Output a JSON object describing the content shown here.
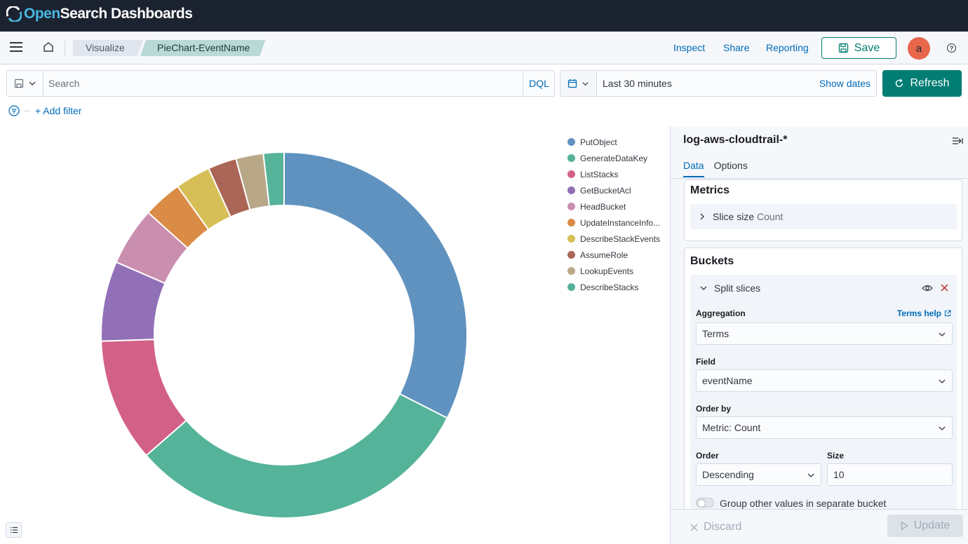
{
  "header": {
    "logo_open": "Open",
    "logo_rest": "Search Dashboards"
  },
  "nav": {
    "breadcrumbs": [
      "Visualize",
      "PieChart-EventName"
    ],
    "inspect": "Inspect",
    "share": "Share",
    "reporting": "Reporting",
    "save": "Save",
    "avatar_initial": "a",
    "help_glyph": "?"
  },
  "query": {
    "search_placeholder": "Search",
    "language": "DQL",
    "time_range": "Last 30 minutes",
    "show_dates": "Show dates",
    "refresh": "Refresh",
    "add_filter": "+ Add filter"
  },
  "chart_data": {
    "type": "pie",
    "donut": true,
    "categories": [
      "PutObject",
      "GenerateDataKey",
      "ListStacks",
      "GetBucketAcl",
      "HeadBucket",
      "UpdateInstanceInfo...",
      "DescribeStackEvents",
      "AssumeRole",
      "LookupEvents",
      "DescribeStacks"
    ],
    "values": [
      32.2,
      30.8,
      10.8,
      7.0,
      5.1,
      3.4,
      3.1,
      2.5,
      2.4,
      1.8
    ],
    "colors": [
      "#6092c0",
      "#54b399",
      "#d36086",
      "#9170b8",
      "#ca8eae",
      "#d6bf57",
      "#b9a888",
      "#da8b45",
      "#aa6556",
      "#e7664c"
    ],
    "slice_colors": [
      "#6092c0",
      "#54b399",
      "#d36086",
      "#9170b8",
      "#ca8eae",
      "#da8b45",
      "#d6bf57",
      "#aa6556",
      "#b9a888",
      "#54b399"
    ],
    "legend_position": "right"
  },
  "sidebar": {
    "index_pattern": "log-aws-cloudtrail-*",
    "tabs": [
      "Data",
      "Options"
    ],
    "metrics_title": "Metrics",
    "slice_size_label": "Slice size",
    "slice_size_value": "Count",
    "buckets_title": "Buckets",
    "split_slices": "Split slices",
    "aggregation_label": "Aggregation",
    "terms_help": "Terms help",
    "aggregation_value": "Terms",
    "field_label": "Field",
    "field_value": "eventName",
    "order_by_label": "Order by",
    "order_by_value": "Metric: Count",
    "order_label": "Order",
    "order_value": "Descending",
    "size_label": "Size",
    "size_value": "10",
    "group_other": "Group other values in separate bucket",
    "discard": "Discard",
    "update": "Update"
  }
}
